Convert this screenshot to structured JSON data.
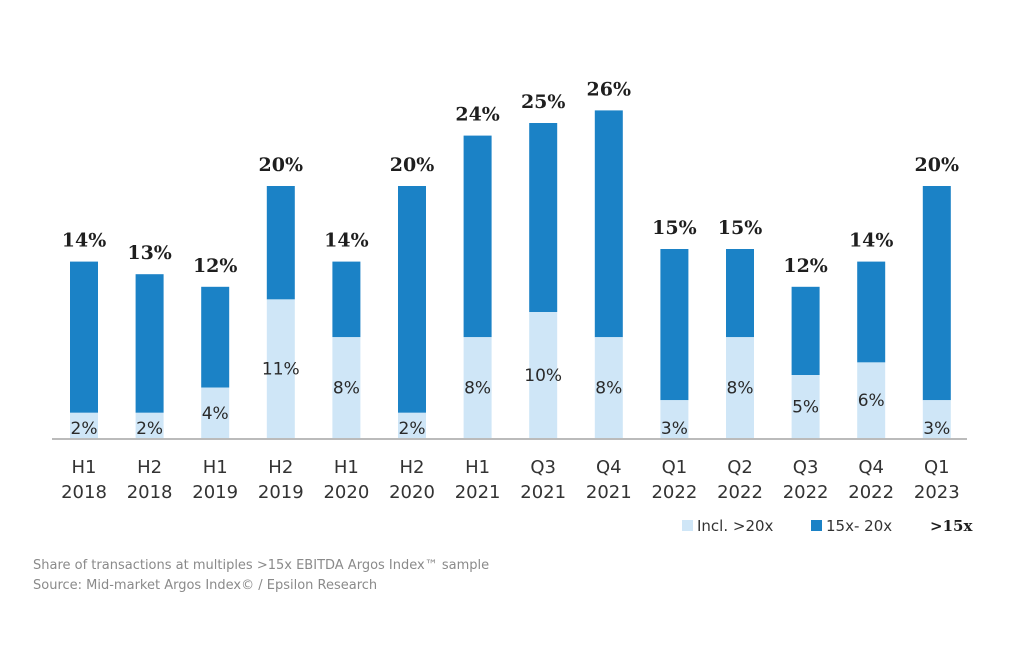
{
  "chart_data": {
    "type": "bar",
    "stacked": true,
    "categories": [
      [
        "H1",
        "2018"
      ],
      [
        "H2",
        "2018"
      ],
      [
        "H1",
        "2019"
      ],
      [
        "H2",
        "2019"
      ],
      [
        "H1",
        "2020"
      ],
      [
        "H2",
        "2020"
      ],
      [
        "H1",
        "2021"
      ],
      [
        "Q3",
        "2021"
      ],
      [
        "Q4",
        "2021"
      ],
      [
        "Q1",
        "2022"
      ],
      [
        "Q2",
        "2022"
      ],
      [
        "Q3",
        "2022"
      ],
      [
        "Q4",
        "2022"
      ],
      [
        "Q1",
        "2023"
      ]
    ],
    "series": [
      {
        "name": "Incl. >20x",
        "color": "#cfe6f7",
        "values": [
          2,
          2,
          4,
          11,
          8,
          2,
          8,
          10,
          8,
          3,
          8,
          5,
          6,
          3
        ]
      },
      {
        "name": "15x-20x",
        "color": "#1b82c6",
        "values": [
          12,
          11,
          8,
          9,
          6,
          18,
          16,
          15,
          18,
          12,
          7,
          7,
          8,
          17
        ]
      }
    ],
    "segment_labels": [
      "2%",
      "2%",
      "4%",
      "11%",
      "8%",
      "2%",
      "8%",
      "10%",
      "8%",
      "3%",
      "8%",
      "5%",
      "6%",
      "3%"
    ],
    "total_labels": [
      "14%",
      "13%",
      "12%",
      "20%",
      "14%",
      "20%",
      "24%",
      "25%",
      "26%",
      "15%",
      "15%",
      "12%",
      "14%",
      "20%"
    ],
    "totals": [
      14,
      13,
      12,
      20,
      14,
      20,
      24,
      25,
      26,
      15,
      15,
      12,
      14,
      20
    ],
    "legend": {
      "items": [
        {
          "label": "Incl. >20x",
          "color": "#cfe6f7"
        },
        {
          "label": "15x- 20x",
          "color": "#1b82c6"
        }
      ],
      "total_label": ">15x",
      "position": "bottom-right"
    },
    "ylim": [
      0,
      26
    ],
    "axis_color": "#bbbbbb"
  },
  "footer": {
    "caption": "Share of transactions at multiples >15x EBITDA Argos Index™ sample",
    "source": "Source: Mid-market Argos Index© / Epsilon Research"
  }
}
